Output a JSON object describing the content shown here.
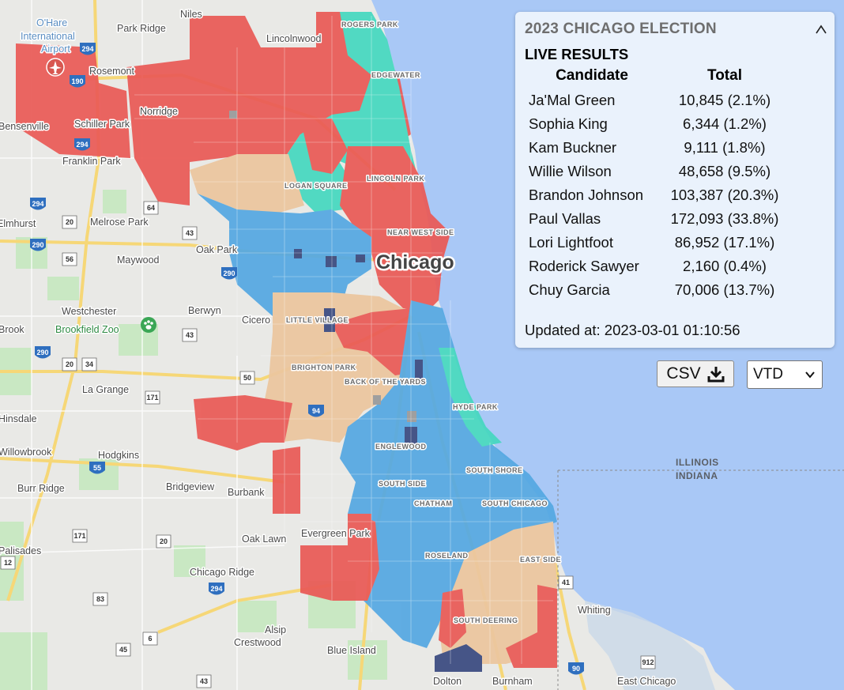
{
  "panel": {
    "title": "2023 CHICAGO ELECTION",
    "collapse_glyph": "^",
    "subtitle": "LIVE RESULTS",
    "columns": [
      "Candidate",
      "Total"
    ],
    "rows": [
      {
        "candidate": "Ja'Mal Green",
        "total": "10,845 (2.1%)"
      },
      {
        "candidate": "Sophia King",
        "total": "6,344 (1.2%)"
      },
      {
        "candidate": "Kam Buckner",
        "total": "9,111 (1.8%)"
      },
      {
        "candidate": "Willie Wilson",
        "total": "48,658 (9.5%)"
      },
      {
        "candidate": "Brandon Johnson",
        "total": "103,387 (20.3%)"
      },
      {
        "candidate": "Paul Vallas",
        "total": "172,093 (33.8%)"
      },
      {
        "candidate": "Lori Lightfoot",
        "total": "86,952 (17.1%)"
      },
      {
        "candidate": "Roderick Sawyer",
        "total": "2,160 (0.4%)"
      },
      {
        "candidate": "Chuy Garcia",
        "total": "70,006 (13.7%)"
      }
    ],
    "updated": "Updated at: 2023-03-01 01:10:56"
  },
  "controls": {
    "csv_label": "CSV",
    "download_icon": "download-icon",
    "level_value": "VTD"
  },
  "colors": {
    "vallas": "#ea5a56",
    "johnson": "#55a8e2",
    "garcia": "#ecc69f",
    "lightfoot": "#46d8c0",
    "wilson": "#3a4a80",
    "other": "#9a9a9a",
    "lake": "#a9c8f6",
    "land": "#e9e9e6",
    "park": "#c9e8c3",
    "highway": "#f6d777"
  },
  "map": {
    "city_label": "Chicago",
    "places": [
      "O'Hare International Airport",
      "Niles",
      "Park Ridge",
      "Lincolnwood",
      "Rosemont",
      "Norridge",
      "Schiller Park",
      "Franklin Park",
      "Bensenville",
      "Elmhurst",
      "Melrose Park",
      "Maywood",
      "Oak Park",
      "Westchester",
      "Berwyn",
      "Cicero",
      "Brookfield Zoo",
      "Brook",
      "La Grange",
      "Hinsdale",
      "Willowbrook",
      "Hodgkins",
      "Burr Ridge",
      "Bridgeview",
      "Burbank",
      "Oak Lawn",
      "Evergreen Park",
      "Chicago Ridge",
      "Palisades",
      "Alsip",
      "Crestwood",
      "Blue Island",
      "Dolton",
      "Burnham",
      "Whiting",
      "East Chicago"
    ],
    "neighborhoods": [
      "ROGERS PARK",
      "LOGAN SQUARE",
      "LINCOLN PARK",
      "NEAR WEST SIDE",
      "LITTLE VILLAGE",
      "BRIGHTON PARK",
      "BACK OF THE YARDS",
      "ENGLEWOOD",
      "SOUTH SIDE",
      "CHATHAM",
      "SOUTH CHICAGO",
      "SOUTH SHORE",
      "ROSELAND",
      "EAST SIDE",
      "SOUTH DEERING",
      "HYDE PARK",
      "EDGEWATER"
    ],
    "state_labels": [
      "ILLINOIS",
      "INDIANA"
    ],
    "shields": [
      "294",
      "190",
      "294",
      "64",
      "294",
      "20",
      "290",
      "56",
      "43",
      "290",
      "34",
      "171",
      "55",
      "50",
      "43",
      "20",
      "171",
      "294",
      "83",
      "45",
      "94",
      "12",
      "41",
      "90",
      "912",
      "20",
      "43",
      "6",
      "290"
    ]
  }
}
